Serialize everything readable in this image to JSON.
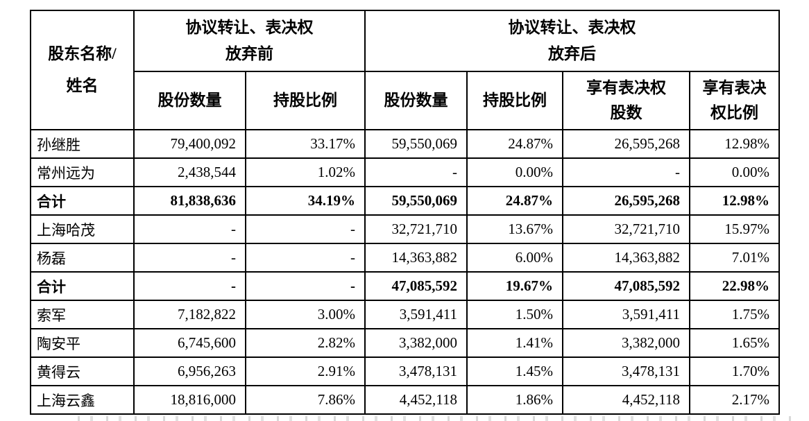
{
  "table": {
    "name_header_line1": "股东名称/",
    "name_header_line2": "姓名",
    "group_before_line1": "协议转让、表决权",
    "group_before_line2": "放弃前",
    "group_after_line1": "协议转让、表决权",
    "group_after_line2": "放弃后",
    "sub_headers": [
      {
        "line1": "股份数量",
        "line2": ""
      },
      {
        "line1": "持股比例",
        "line2": ""
      },
      {
        "line1": "股份数量",
        "line2": ""
      },
      {
        "line1": "持股比例",
        "line2": ""
      },
      {
        "line1": "享有表决权",
        "line2": "股数"
      },
      {
        "line1": "享有表决",
        "line2": "权比例"
      }
    ],
    "rows": [
      {
        "name": "孙继胜",
        "bold": false,
        "cells": [
          "79,400,092",
          "33.17%",
          "59,550,069",
          "24.87%",
          "26,595,268",
          "12.98%"
        ]
      },
      {
        "name": "常州远为",
        "bold": false,
        "cells": [
          "2,438,544",
          "1.02%",
          "-",
          "0.00%",
          "-",
          "0.00%"
        ]
      },
      {
        "name": "合计",
        "bold": true,
        "cells": [
          "81,838,636",
          "34.19%",
          "59,550,069",
          "24.87%",
          "26,595,268",
          "12.98%"
        ]
      },
      {
        "name": "上海哈茂",
        "bold": false,
        "cells": [
          "-",
          "-",
          "32,721,710",
          "13.67%",
          "32,721,710",
          "15.97%"
        ]
      },
      {
        "name": "杨磊",
        "bold": false,
        "cells": [
          "-",
          "-",
          "14,363,882",
          "6.00%",
          "14,363,882",
          "7.01%"
        ]
      },
      {
        "name": "合计",
        "bold": true,
        "cells": [
          "-",
          "-",
          "47,085,592",
          "19.67%",
          "47,085,592",
          "22.98%"
        ]
      },
      {
        "name": "索军",
        "bold": false,
        "cells": [
          "7,182,822",
          "3.00%",
          "3,591,411",
          "1.50%",
          "3,591,411",
          "1.75%"
        ]
      },
      {
        "name": "陶安平",
        "bold": false,
        "cells": [
          "6,745,600",
          "2.82%",
          "3,382,000",
          "1.41%",
          "3,382,000",
          "1.65%"
        ]
      },
      {
        "name": "黄得云",
        "bold": false,
        "cells": [
          "6,956,263",
          "2.91%",
          "3,478,131",
          "1.45%",
          "3,478,131",
          "1.70%"
        ]
      },
      {
        "name": "上海云鑫",
        "bold": false,
        "cells": [
          "18,816,000",
          "7.86%",
          "4,452,118",
          "1.86%",
          "4,452,118",
          "2.17%"
        ]
      }
    ]
  }
}
